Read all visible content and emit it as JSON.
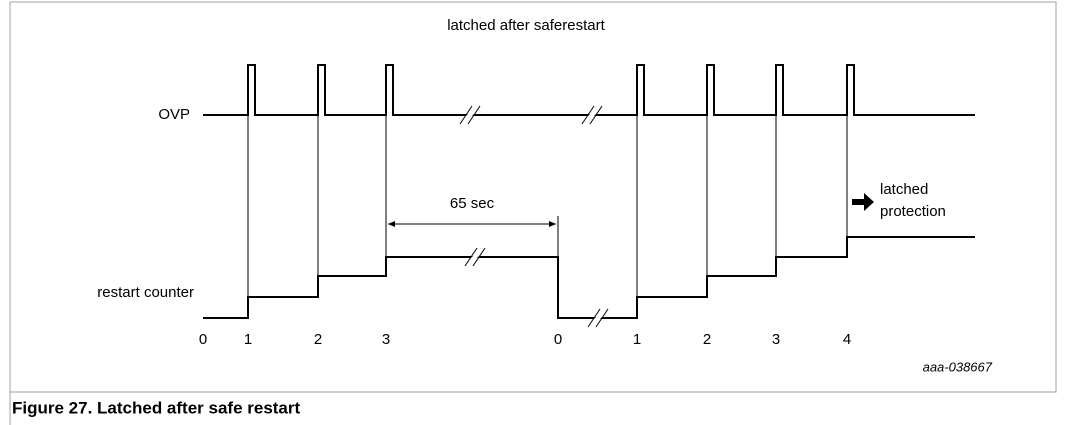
{
  "title": "latched after saferestart",
  "signals": {
    "ovp": "OVP",
    "counter": "restart counter"
  },
  "interval": "65 sec",
  "latched": [
    "latched",
    "protection"
  ],
  "counter_labels": [
    "0",
    "1",
    "2",
    "3",
    "0",
    "1",
    "2",
    "3",
    "4"
  ],
  "figure_id": "aaa-038667",
  "caption": "Figure 27.  Latched after safe restart"
}
